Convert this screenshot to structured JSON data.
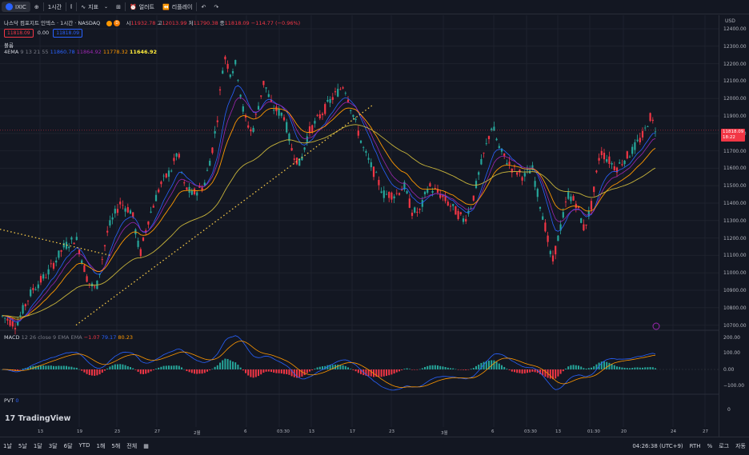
{
  "toolbar": {
    "symbol": "IXIC",
    "interval": "1시간",
    "indicators_label": "지표",
    "alert_label": "얼러트",
    "replay_label": "리플레이"
  },
  "header": {
    "title": "나스닥 컴포지트 인덱스 · 1시간 · NASDAQ",
    "open_label": "시",
    "open": "11932.78",
    "high_label": "고",
    "high": "12013.99",
    "low_label": "저",
    "low": "11790.38",
    "close_label": "종",
    "close": "11818.09",
    "change": "−114.77 (−0.96%)",
    "bid": "11818.09",
    "spread": "0.00",
    "ask": "11818.09",
    "volume_label": "볼륨",
    "ema_name": "4EMA",
    "ema_params": "9 13 21 55",
    "ema_values": [
      "11860.78",
      "11864.92",
      "11778.32",
      "11646.92"
    ],
    "currency": "USD"
  },
  "price_axis": {
    "labels": [
      "12400.00",
      "12300.00",
      "12200.00",
      "12100.00",
      "12000.00",
      "11900.00",
      "11800.00",
      "11700.00",
      "11600.00",
      "11500.00",
      "11400.00",
      "11300.00",
      "11200.00",
      "11100.00",
      "11000.00",
      "10900.00",
      "10800.00",
      "10700.00"
    ],
    "current_price": "11818.09",
    "countdown": "18:22",
    "macd_labels": [
      "200.00",
      "100.00",
      "0.00",
      "−100.00"
    ],
    "pvt_labels": [
      "0"
    ]
  },
  "macd": {
    "name": "MACD",
    "params": "12 26 close 9 EMA EMA",
    "hist": "−1.07",
    "macd": "79.17",
    "signal": "80.23"
  },
  "pvt": {
    "name": "PVT",
    "value": "0"
  },
  "time_axis": {
    "labels": [
      "13",
      "19",
      "23",
      "27",
      "2월",
      "6",
      "03:30",
      "13",
      "17",
      "23",
      "3월",
      "6",
      "03:30",
      "13",
      "01:30",
      "20",
      "24",
      "27"
    ]
  },
  "bottombar": {
    "ranges": [
      "1날",
      "5날",
      "1달",
      "3달",
      "6달",
      "YTD",
      "1해",
      "5해",
      "전체"
    ],
    "time": "04:26:38 (UTC+9)",
    "session": "RTH",
    "percent": "%",
    "log": "로그",
    "auto": "자동"
  },
  "brand": "TradingView",
  "colors": {
    "up": "#26a69a",
    "down": "#f23645",
    "ema9": "#2962ff",
    "ema13": "#9c27b0",
    "ema21": "#ff9800",
    "ema55": "#c9b53b",
    "trend": "#f7c948"
  }
}
